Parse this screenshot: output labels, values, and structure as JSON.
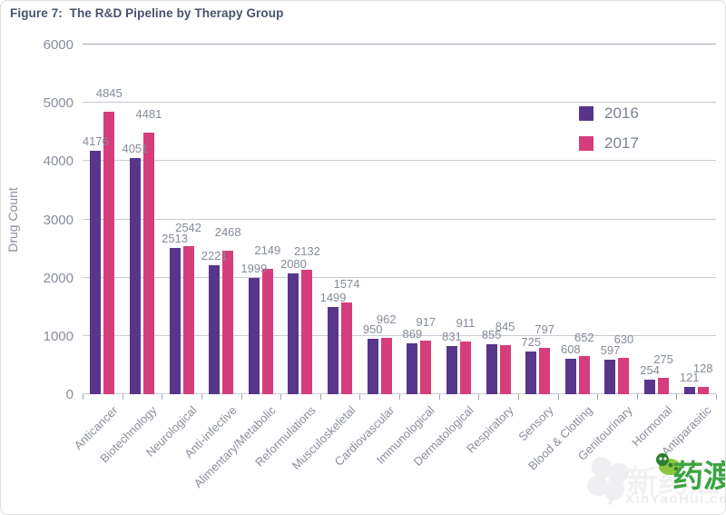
{
  "chart_data": {
    "type": "bar",
    "title": "Figure 7:  The R&D Pipeline by Therapy Group",
    "xlabel": "",
    "ylabel": "Drug Count",
    "ylim": [
      0,
      6000
    ],
    "ytick_interval": 1000,
    "grid": "horizontal",
    "legend_position": "top-right",
    "categories": [
      "Anticancer",
      "Biotechnology",
      "Neurological",
      "Anti-infective",
      "Alimentary/Metabolic",
      "Reformulations",
      "Musculoskeletal",
      "Cardiovascular",
      "Immunological",
      "Dermatological",
      "Respiratory",
      "Sensory",
      "Blood & Clotting",
      "Genitourinary",
      "Hormonal",
      "Antiparasitic"
    ],
    "series": [
      {
        "name": "2016",
        "color": "#57368b",
        "values": [
          4176,
          4051,
          2513,
          2221,
          1999,
          2080,
          1499,
          950,
          869,
          831,
          855,
          725,
          608,
          597,
          254,
          121
        ]
      },
      {
        "name": "2017",
        "color": "#d63d7c",
        "values": [
          4845,
          4481,
          2542,
          2468,
          2149,
          2132,
          1574,
          962,
          917,
          911,
          845,
          797,
          652,
          630,
          275,
          128
        ]
      }
    ]
  },
  "watermark": {
    "ghost_text": "新药汇",
    "brand_text": "药渡",
    "site_text": "XinYaoHui.com",
    "brand_color": "#3ca341"
  },
  "colors": {
    "title_text": "#47536d",
    "axis_text": "#878d9a",
    "gridline": "#c8cbd3"
  }
}
